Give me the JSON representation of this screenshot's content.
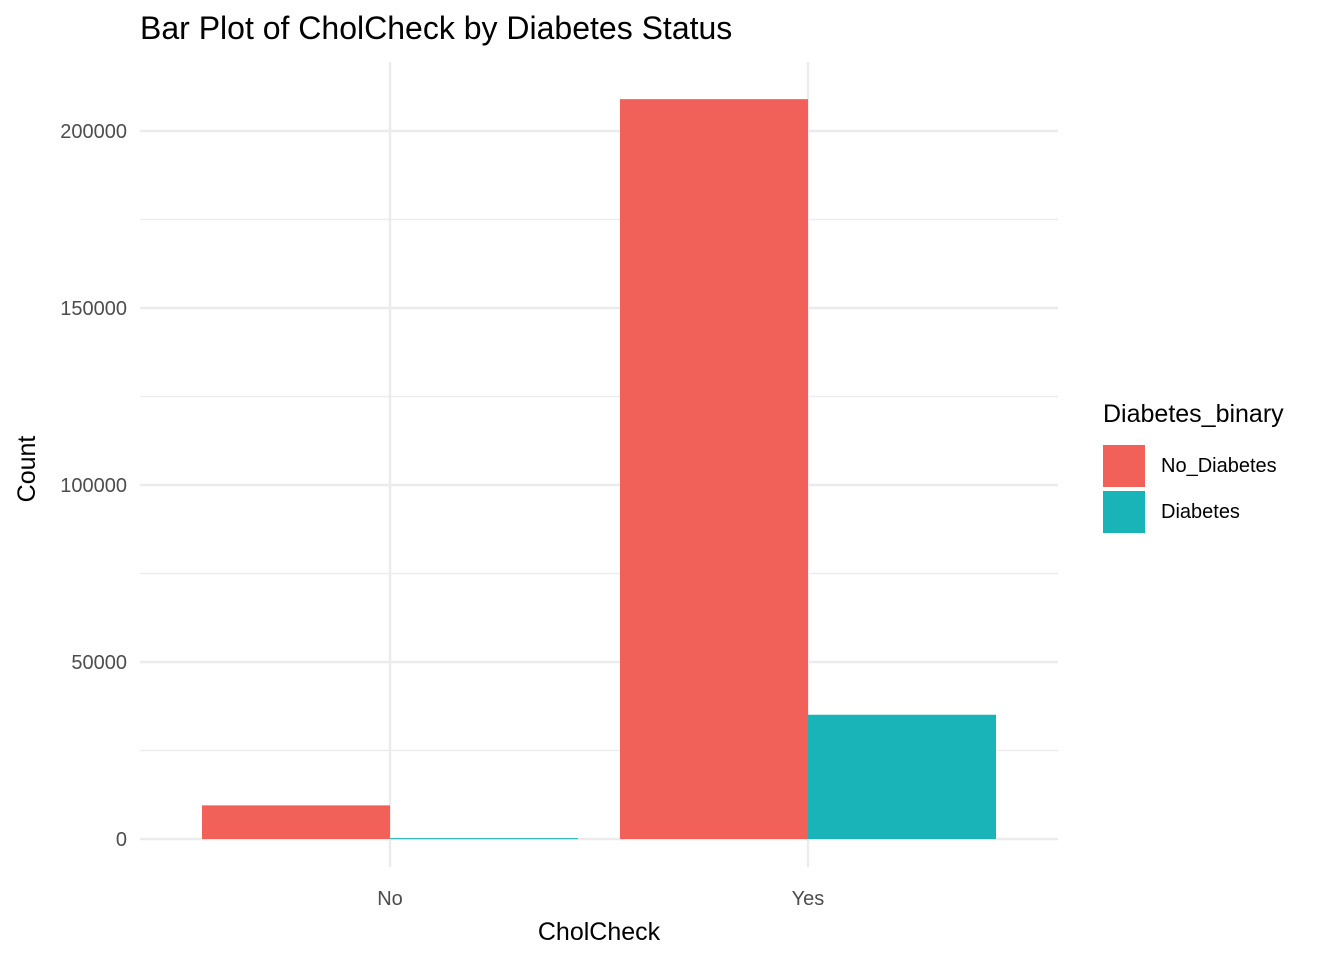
{
  "chart_data": {
    "type": "bar",
    "title": "Bar Plot of CholCheck by Diabetes Status",
    "xlabel": "CholCheck",
    "ylabel": "Count",
    "categories": [
      "No",
      "Yes"
    ],
    "series": [
      {
        "name": "No_Diabetes",
        "color": "#F2605A",
        "values": [
          9500,
          209000
        ]
      },
      {
        "name": "Diabetes",
        "color": "#19B4B8",
        "values": [
          240,
          35100
        ]
      }
    ],
    "ylim": [
      0,
      210000
    ],
    "yticks": [
      0,
      50000,
      100000,
      150000,
      200000
    ],
    "ytick_labels": [
      "0",
      "50000",
      "100000",
      "150000",
      "200000"
    ],
    "legend_title": "Diabetes_binary",
    "legend_position": "right",
    "grid": true
  }
}
